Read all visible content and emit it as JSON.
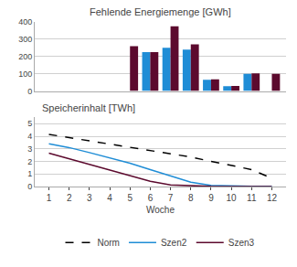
{
  "chart_data": [
    {
      "type": "bar",
      "title": "Fehlende Energiemenge [GWh]",
      "x": [
        1,
        2,
        3,
        4,
        5,
        6,
        7,
        8,
        9,
        10,
        11,
        12
      ],
      "series": [
        {
          "name": "Szen2",
          "color": "#1f8dd6",
          "values": [
            0,
            0,
            0,
            0,
            0,
            225,
            250,
            240,
            65,
            28,
            100,
            0
          ]
        },
        {
          "name": "Szen3",
          "color": "#5c0a2e",
          "values": [
            0,
            0,
            0,
            0,
            260,
            225,
            375,
            270,
            68,
            30,
            102,
            100
          ]
        }
      ],
      "xlim": [
        0.3,
        12.7
      ],
      "ylim": [
        0,
        400
      ],
      "yticks": [
        0,
        100,
        200,
        300,
        400
      ],
      "grid": true,
      "tick_labels": "y"
    },
    {
      "type": "line",
      "title": "Speicherinhalt [TWh]",
      "x_label": "Woche",
      "x": [
        1,
        2,
        3,
        4,
        5,
        6,
        7,
        8,
        9,
        10,
        11,
        12
      ],
      "series": [
        {
          "name": "Norm",
          "color": "#000000",
          "line_style": "dashed",
          "values": [
            4.15,
            3.9,
            3.65,
            3.4,
            3.15,
            2.9,
            2.65,
            2.35,
            2.0,
            1.7,
            1.35,
            0.65
          ]
        },
        {
          "name": "Szen2",
          "color": "#1f8dd6",
          "line_style": "solid",
          "values": [
            3.4,
            3.1,
            2.7,
            2.3,
            1.85,
            1.35,
            0.85,
            0.35,
            0.1,
            0.05,
            0.02,
            0.01
          ]
        },
        {
          "name": "Szen3",
          "color": "#5c0a2e",
          "line_style": "solid",
          "values": [
            2.65,
            2.2,
            1.75,
            1.3,
            0.85,
            0.42,
            0.12,
            0.04,
            0.01,
            0.005,
            0.003,
            0.002
          ]
        }
      ],
      "xlim": [
        0.3,
        12.7
      ],
      "xticks": [
        1,
        2,
        3,
        4,
        5,
        6,
        7,
        8,
        9,
        10,
        11,
        12
      ],
      "ylim": [
        0,
        5.5
      ],
      "yticks": [
        0,
        1,
        2,
        3,
        4,
        5
      ],
      "grid": true,
      "legend": "bottom"
    }
  ]
}
